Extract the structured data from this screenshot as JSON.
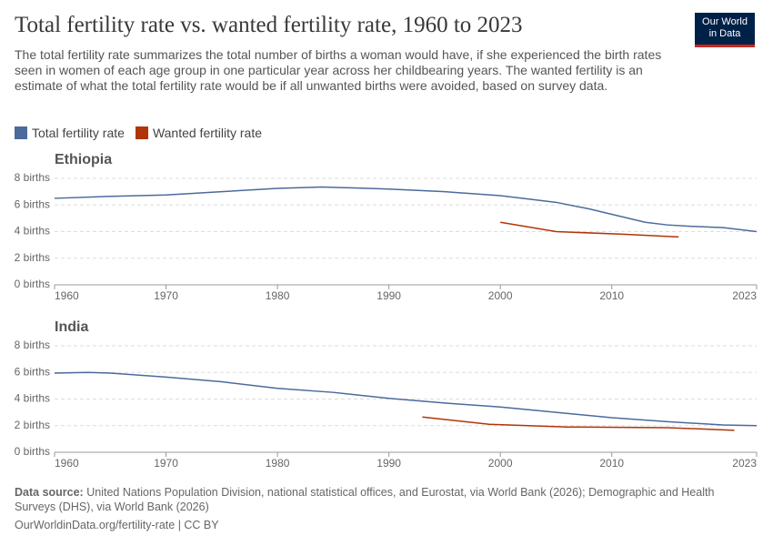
{
  "title": "Total fertility rate vs. wanted fertility rate, 1960 to 2023",
  "subtitle": "The total fertility rate summarizes the total number of births a woman would have, if she experienced the birth rates seen in women of each age group in one particular year across her childbearing years. The wanted fertility is an estimate of what the total fertility rate would be if all unwanted births were avoided, based on survey data.",
  "logo": [
    "Our World",
    "in Data"
  ],
  "source_label": "Data source:",
  "source": "United Nations Population Division, national statistical offices, and Eurostat, via World Bank (2026); Demographic and Health Surveys (DHS), via World Bank (2026)",
  "footer": "OurWorldinData.org/fertility-rate | CC BY",
  "chart_data": [
    {
      "type": "line",
      "title": "Ethiopia",
      "series": [
        {
          "name": "Total fertility rate",
          "color": "#4c6a9c",
          "x": [
            1960,
            1965,
            1970,
            1975,
            1980,
            1984,
            1990,
            1995,
            2000,
            2005,
            2008,
            2010,
            2013,
            2015,
            2017,
            2020,
            2023
          ],
          "values": [
            6.5,
            6.65,
            6.75,
            7.0,
            7.25,
            7.35,
            7.2,
            7.0,
            6.7,
            6.2,
            5.7,
            5.3,
            4.7,
            4.5,
            4.4,
            4.3,
            4.0
          ]
        },
        {
          "name": "Wanted fertility rate",
          "color": "#b13507",
          "x": [
            2000,
            2005,
            2011,
            2016
          ],
          "values": [
            4.7,
            4.0,
            3.8,
            3.6
          ]
        }
      ],
      "xlim": [
        1960,
        2023
      ],
      "xticks": [
        1960,
        1970,
        1980,
        1990,
        2000,
        2010,
        2023
      ],
      "ylim": [
        0,
        8
      ],
      "yticks": [
        {
          "value": 0,
          "label": "0 births"
        },
        {
          "value": 2,
          "label": "2 births"
        },
        {
          "value": 4,
          "label": "4 births"
        },
        {
          "value": 6,
          "label": "6 births"
        },
        {
          "value": 8,
          "label": "8 births"
        }
      ],
      "grid": true
    },
    {
      "type": "line",
      "title": "India",
      "series": [
        {
          "name": "Total fertility rate",
          "color": "#4c6a9c",
          "x": [
            1960,
            1963,
            1965,
            1970,
            1975,
            1980,
            1985,
            1990,
            1995,
            2000,
            2005,
            2010,
            2015,
            2020,
            2023
          ],
          "values": [
            5.95,
            6.0,
            5.95,
            5.65,
            5.3,
            4.8,
            4.5,
            4.05,
            3.7,
            3.4,
            3.0,
            2.6,
            2.3,
            2.05,
            2.0
          ]
        },
        {
          "name": "Wanted fertility rate",
          "color": "#b13507",
          "x": [
            1993,
            1999,
            2006,
            2015,
            2021
          ],
          "values": [
            2.65,
            2.1,
            1.9,
            1.85,
            1.65
          ]
        }
      ],
      "xlim": [
        1960,
        2023
      ],
      "xticks": [
        1960,
        1970,
        1980,
        1990,
        2000,
        2010,
        2023
      ],
      "ylim": [
        0,
        8
      ],
      "yticks": [
        {
          "value": 0,
          "label": "0 births"
        },
        {
          "value": 2,
          "label": "2 births"
        },
        {
          "value": 4,
          "label": "4 births"
        },
        {
          "value": 6,
          "label": "6 births"
        },
        {
          "value": 8,
          "label": "8 births"
        }
      ],
      "grid": true
    }
  ]
}
